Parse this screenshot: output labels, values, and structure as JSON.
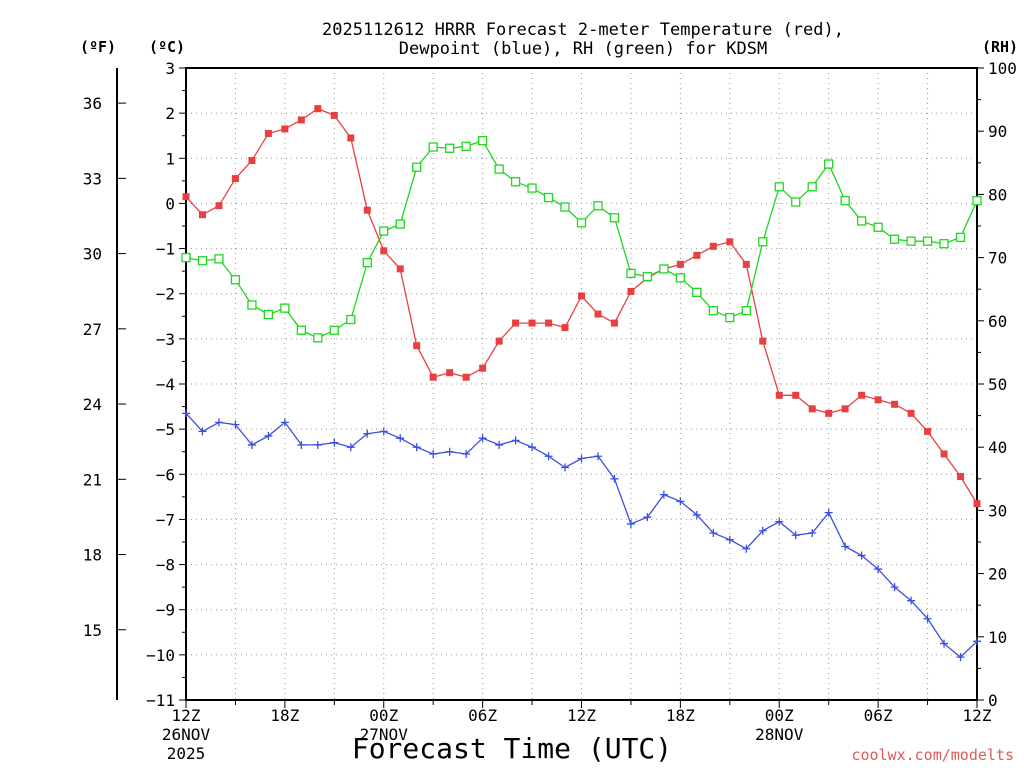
{
  "chart_data": {
    "type": "line",
    "title_line1": "2025112612 HRRR Forecast 2-meter Temperature (red),",
    "title_line2": "Dewpoint (blue), RH (green) for KDSM",
    "xlabel": "Forecast Time (UTC)",
    "credit": "coolwx.com/modelts",
    "credit_color": "#e05a5a",
    "units": {
      "fahrenheit": "(ºF)",
      "celsius": "(ºC)",
      "rh": "(RH)"
    },
    "x_hours": [
      0,
      1,
      2,
      3,
      4,
      5,
      6,
      7,
      8,
      9,
      10,
      11,
      12,
      13,
      14,
      15,
      16,
      17,
      18,
      19,
      20,
      21,
      22,
      23,
      24,
      25,
      26,
      27,
      28,
      29,
      30,
      31,
      32,
      33,
      34,
      35,
      36,
      37,
      38,
      39,
      40,
      41,
      42,
      43,
      44,
      45,
      46,
      47,
      48
    ],
    "x_ticks": [
      {
        "hour": 0,
        "label": "12Z",
        "line2": "26NOV",
        "line3": "2025"
      },
      {
        "hour": 6,
        "label": "18Z",
        "line2": "",
        "line3": ""
      },
      {
        "hour": 12,
        "label": "00Z",
        "line2": "27NOV",
        "line3": ""
      },
      {
        "hour": 18,
        "label": "06Z",
        "line2": "",
        "line3": ""
      },
      {
        "hour": 24,
        "label": "12Z",
        "line2": "",
        "line3": ""
      },
      {
        "hour": 30,
        "label": "18Z",
        "line2": "",
        "line3": ""
      },
      {
        "hour": 36,
        "label": "00Z",
        "line2": "28NOV",
        "line3": ""
      },
      {
        "hour": 42,
        "label": "06Z",
        "line2": "",
        "line3": ""
      },
      {
        "hour": 48,
        "label": "12Z",
        "line2": "",
        "line3": ""
      }
    ],
    "ylim_celsius": [
      -11,
      3
    ],
    "y_ticks_celsius": [
      "3",
      "2",
      "1",
      "0",
      "−1",
      "−2",
      "−3",
      "−4",
      "−5",
      "−6",
      "−7",
      "−8",
      "−9",
      "−10",
      "−11"
    ],
    "y_ticks_fahrenheit": [
      {
        "value": 36,
        "label": "36"
      },
      {
        "value": 33,
        "label": "33"
      },
      {
        "value": 30,
        "label": "30"
      },
      {
        "value": 27,
        "label": "27"
      },
      {
        "value": 24,
        "label": "24"
      },
      {
        "value": 21,
        "label": "21"
      },
      {
        "value": 18,
        "label": "18"
      },
      {
        "value": 15,
        "label": "15"
      }
    ],
    "ylim_rh": [
      0,
      100
    ],
    "y_ticks_rh": [
      "100",
      "90",
      "80",
      "70",
      "60",
      "50",
      "40",
      "30",
      "20",
      "10",
      "0"
    ],
    "grid": true,
    "series": [
      {
        "name": "Temperature",
        "axis": "celsius",
        "color": "#e84040",
        "marker": "filled-square",
        "values": [
          0.15,
          -0.25,
          -0.05,
          0.55,
          0.95,
          1.55,
          1.65,
          1.85,
          2.1,
          1.95,
          1.45,
          -0.15,
          -1.05,
          -1.45,
          -3.15,
          -3.85,
          -3.75,
          -3.85,
          -3.65,
          -3.05,
          -2.65,
          -2.65,
          -2.65,
          -2.75,
          -2.05,
          -2.45,
          -2.65,
          -1.95,
          -1.65,
          -1.45,
          -1.35,
          -1.15,
          -0.95,
          -0.85,
          -1.35,
          -3.05,
          -4.25,
          -4.25,
          -4.55,
          -4.65,
          -4.55,
          -4.25,
          -4.35,
          -4.45,
          -4.65,
          -5.05,
          -5.55,
          -6.05,
          -6.65
        ]
      },
      {
        "name": "Dewpoint",
        "axis": "celsius",
        "color": "#3a50e0",
        "marker": "plus",
        "values": [
          -4.65,
          -5.05,
          -4.85,
          -4.9,
          -5.35,
          -5.15,
          -4.85,
          -5.35,
          -5.35,
          -5.3,
          -5.4,
          -5.1,
          -5.05,
          -5.2,
          -5.4,
          -5.55,
          -5.5,
          -5.55,
          -5.2,
          -5.35,
          -5.25,
          -5.4,
          -5.6,
          -5.85,
          -5.65,
          -5.6,
          -6.1,
          -7.1,
          -6.95,
          -6.45,
          -6.6,
          -6.9,
          -7.3,
          -7.45,
          -7.65,
          -7.25,
          -7.05,
          -7.35,
          -7.3,
          -6.85,
          -7.6,
          -7.8,
          -8.1,
          -8.5,
          -8.8,
          -9.2,
          -9.75,
          -10.05,
          -9.7
        ]
      },
      {
        "name": "RH",
        "axis": "rh",
        "color": "#1ed81e",
        "marker": "open-square",
        "values": [
          70,
          69.5,
          69.8,
          66.5,
          62.5,
          61,
          62,
          58.5,
          57.3,
          58.5,
          60.2,
          69.2,
          74.2,
          75.3,
          84.3,
          87.5,
          87.3,
          87.6,
          88.5,
          84,
          82,
          81,
          79.5,
          78,
          75.5,
          78.2,
          76.3,
          67.5,
          67,
          68.2,
          66.8,
          64.5,
          61.6,
          60.5,
          61.6,
          72.5,
          81.2,
          78.8,
          81.2,
          84.8,
          79,
          75.8,
          74.8,
          72.9,
          72.6,
          72.6,
          72.2,
          73.2,
          79
        ]
      }
    ]
  }
}
